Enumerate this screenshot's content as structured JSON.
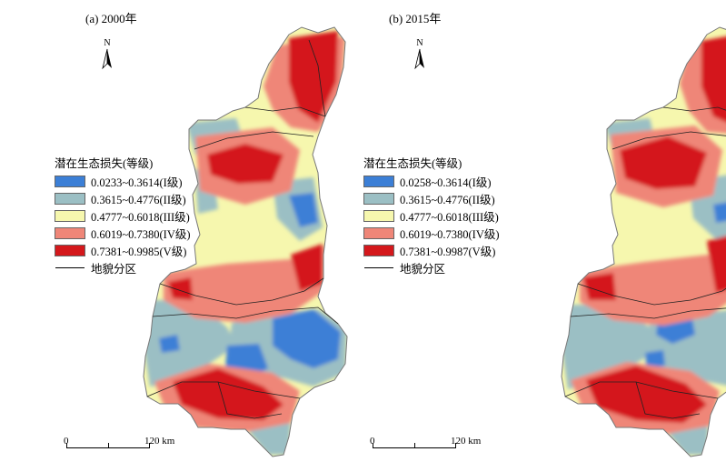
{
  "panels": [
    {
      "title": "(a) 2000年",
      "north": "N",
      "legend": {
        "title": "潜在生态损失(等级)",
        "classes": [
          {
            "label": "0.0233~0.3614(I级)",
            "color": "#3c7fd6"
          },
          {
            "label": "0.3615~0.4776(II级)",
            "color": "#9bbfc4"
          },
          {
            "label": "0.4777~0.6018(III级)",
            "color": "#f6f7ae"
          },
          {
            "label": "0.6019~0.7380(IV级)",
            "color": "#ef8678"
          },
          {
            "label": "0.7381~0.9985(V级)",
            "color": "#d4181c"
          }
        ],
        "boundary_label": "地貌分区"
      },
      "scale": {
        "zero": "0",
        "end": "120 km"
      }
    },
    {
      "title": "(b) 2015年",
      "north": "N",
      "legend": {
        "title": "潜在生态损失(等级)",
        "classes": [
          {
            "label": "0.0258~0.3614(I级)",
            "color": "#3c7fd6"
          },
          {
            "label": "0.3615~0.4776(II级)",
            "color": "#9bbfc4"
          },
          {
            "label": "0.4777~0.6018(III级)",
            "color": "#f6f7ae"
          },
          {
            "label": "0.6019~0.7380(IV级)",
            "color": "#ef8678"
          },
          {
            "label": "0.7381~0.9987(V级)",
            "color": "#d4181c"
          }
        ],
        "boundary_label": "地貌分区"
      },
      "scale": {
        "zero": "0",
        "end": "120 km"
      }
    }
  ]
}
